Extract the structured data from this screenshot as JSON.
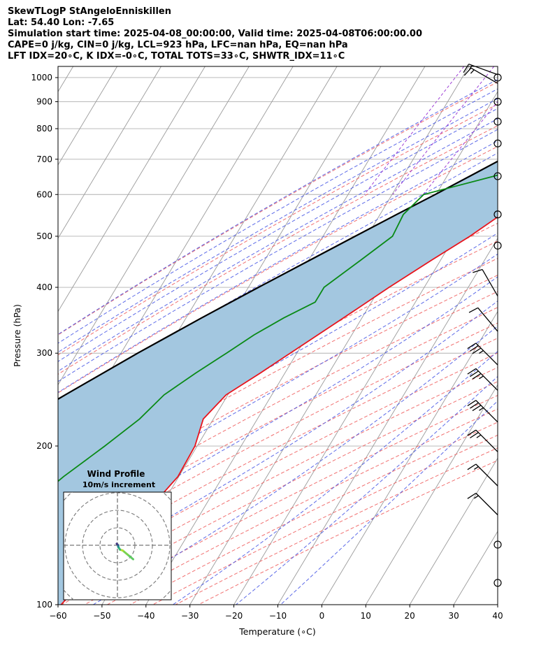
{
  "header": {
    "title": "SkewTLogP StAngeloEnniskillen",
    "location": "Lat: 54.40   Lon: -7.65",
    "times": "Simulation start time: 2025-04-08_00:00:00, Valid time: 2025-04-08T06:00:00.00",
    "indices1": "CAPE=0 j/kg, CIN=0 j/kg, LCL=923 hPa, LFC=nan hPa, EQ=nan hPa",
    "indices2": "LFT IDX=20∘C, K IDX=-0∘C, TOTAL TOTS=33∘C, SHWTR_IDX=11∘C"
  },
  "colors": {
    "temperature": "#e8141c",
    "dewpoint": "#0a8a16",
    "parcel": "#000000",
    "fill": "#a3c7e0",
    "dry_adiabat": "#f06060",
    "moist_adiabat": "#4a5ae6",
    "mixing_ratio": "#9e3fd6",
    "isotherm": "#9a9a9a",
    "grid": "#b0b0b0"
  },
  "chart_data": {
    "type": "line",
    "chart_kind": "skew-T log-P",
    "xlabel": "Temperature (∘C)",
    "ylabel": "Pressure (hPa)",
    "xlim": [
      -60,
      40
    ],
    "ylim": [
      1050,
      100
    ],
    "y_scale": "log",
    "x_ticks": [
      "−60",
      "−50",
      "−40",
      "−30",
      "−20",
      "−10",
      "0",
      "10",
      "20",
      "30",
      "40"
    ],
    "x_tick_values": [
      -60,
      -50,
      -40,
      -30,
      -20,
      -10,
      0,
      10,
      20,
      30,
      40
    ],
    "y_ticks": [
      "100",
      "200",
      "300",
      "400",
      "500",
      "600",
      "700",
      "800",
      "900",
      "1000"
    ],
    "y_tick_values": [
      100,
      200,
      300,
      400,
      500,
      600,
      700,
      800,
      900,
      1000
    ],
    "grid": true,
    "temperature": [
      {
        "p": 1013,
        "t": 4.9
      },
      {
        "p": 1000,
        "t": 8.5
      },
      {
        "p": 975,
        "t": 10.8
      },
      {
        "p": 950,
        "t": 11.4
      },
      {
        "p": 900,
        "t": 10.9
      },
      {
        "p": 850,
        "t": 9.8
      },
      {
        "p": 800,
        "t": 7.3
      },
      {
        "p": 750,
        "t": 3.8
      },
      {
        "p": 700,
        "t": 0.2
      },
      {
        "p": 650,
        "t": -3.5
      },
      {
        "p": 600,
        "t": -7.6
      },
      {
        "p": 550,
        "t": -12.4
      },
      {
        "p": 500,
        "t": -16.6
      },
      {
        "p": 450,
        "t": -22.1
      },
      {
        "p": 400,
        "t": -28.0
      },
      {
        "p": 350,
        "t": -34.2
      },
      {
        "p": 300,
        "t": -41.5
      },
      {
        "p": 275,
        "t": -45.6
      },
      {
        "p": 250,
        "t": -50.4
      },
      {
        "p": 225,
        "t": -52.3
      },
      {
        "p": 200,
        "t": -50.5
      },
      {
        "p": 175,
        "t": -50.2
      },
      {
        "p": 150,
        "t": -52.5
      },
      {
        "p": 125,
        "t": -55.5
      },
      {
        "p": 100,
        "t": -59.3
      }
    ],
    "dewpoint": [
      {
        "p": 1010,
        "t": -0.3
      },
      {
        "p": 990,
        "t": -2.5
      },
      {
        "p": 970,
        "t": -1.4
      },
      {
        "p": 950,
        "t": -0.3
      },
      {
        "p": 920,
        "t": -1.8
      },
      {
        "p": 880,
        "t": -7.0
      },
      {
        "p": 850,
        "t": -13.8
      },
      {
        "p": 800,
        "t": -14.5
      },
      {
        "p": 760,
        "t": -9.8
      },
      {
        "p": 700,
        "t": -8.7
      },
      {
        "p": 680,
        "t": -13.2
      },
      {
        "p": 650,
        "t": -19.3
      },
      {
        "p": 600,
        "t": -32.8
      },
      {
        "p": 550,
        "t": -34.7
      },
      {
        "p": 500,
        "t": -34.2
      },
      {
        "p": 450,
        "t": -38.2
      },
      {
        "p": 400,
        "t": -42.8
      },
      {
        "p": 375,
        "t": -42.8
      },
      {
        "p": 350,
        "t": -47.8
      },
      {
        "p": 325,
        "t": -52.2
      },
      {
        "p": 300,
        "t": -56.0
      },
      {
        "p": 275,
        "t": -60.3
      },
      {
        "p": 250,
        "t": -64.5
      },
      {
        "p": 225,
        "t": -66.8
      },
      {
        "p": 200,
        "t": -71.0
      },
      {
        "p": 175,
        "t": -76.2
      },
      {
        "p": 150,
        "t": -81.0
      },
      {
        "p": 125,
        "t": -82.3
      },
      {
        "p": 100,
        "t": -82.5
      }
    ],
    "parcel": [
      {
        "p": 1013,
        "t": 4.9
      },
      {
        "p": 1000,
        "t": 3.8
      },
      {
        "p": 950,
        "t": -0.5
      },
      {
        "p": 923,
        "t": -2.9
      },
      {
        "p": 900,
        "t": -4.4
      },
      {
        "p": 850,
        "t": -7.8
      },
      {
        "p": 800,
        "t": -11.5
      },
      {
        "p": 750,
        "t": -15.5
      },
      {
        "p": 700,
        "t": -19.9
      },
      {
        "p": 650,
        "t": -24.8
      },
      {
        "p": 600,
        "t": -30.2
      },
      {
        "p": 550,
        "t": -36.2
      },
      {
        "p": 500,
        "t": -42.7
      },
      {
        "p": 450,
        "t": -49.8
      },
      {
        "p": 400,
        "t": -57.7
      },
      {
        "p": 350,
        "t": -66.5
      },
      {
        "p": 300,
        "t": -76.2
      },
      {
        "p": 250,
        "t": -87.0
      },
      {
        "p": 200,
        "t": -99.6
      },
      {
        "p": 150,
        "t": -115.0
      },
      {
        "p": 100,
        "t": -135.0
      }
    ],
    "wind_barbs": [
      {
        "p": 1013,
        "speed_kt": 15,
        "dir": 290
      },
      {
        "p": 1000,
        "speed_kt": 0,
        "dir": 0
      },
      {
        "p": 975,
        "speed_kt": 15,
        "dir": 300
      },
      {
        "p": 900,
        "speed_kt": 0,
        "dir": 0
      },
      {
        "p": 825,
        "speed_kt": 0,
        "dir": 0
      },
      {
        "p": 750,
        "speed_kt": 0,
        "dir": 0
      },
      {
        "p": 650,
        "speed_kt": 0,
        "dir": 0
      },
      {
        "p": 550,
        "speed_kt": 0,
        "dir": 0
      },
      {
        "p": 480,
        "speed_kt": 0,
        "dir": 0
      },
      {
        "p": 385,
        "speed_kt": 10,
        "dir": 330
      },
      {
        "p": 330,
        "speed_kt": 10,
        "dir": 320
      },
      {
        "p": 285,
        "speed_kt": 35,
        "dir": 315
      },
      {
        "p": 255,
        "speed_kt": 35,
        "dir": 315
      },
      {
        "p": 222,
        "speed_kt": 35,
        "dir": 315
      },
      {
        "p": 195,
        "speed_kt": 25,
        "dir": 315
      },
      {
        "p": 168,
        "speed_kt": 15,
        "dir": 315
      },
      {
        "p": 148,
        "speed_kt": 15,
        "dir": 315
      },
      {
        "p": 130,
        "speed_kt": 0,
        "dir": 0
      },
      {
        "p": 110,
        "speed_kt": 0,
        "dir": 0
      }
    ],
    "hodograph": {
      "title": "Wind Profile",
      "subtitle": "10m/s increment",
      "ring_step_ms": 10,
      "rings": 4,
      "points": [
        {
          "u": 9.0,
          "v": -8.0,
          "color": "#5ec962"
        },
        {
          "u": 6.0,
          "v": -5.5,
          "color": "#7ad151"
        },
        {
          "u": 3.0,
          "v": -3.0,
          "color": "#b5de2b"
        },
        {
          "u": 1.5,
          "v": -2.5,
          "color": "#35b779"
        },
        {
          "u": 0.5,
          "v": -1.0,
          "color": "#21918c"
        },
        {
          "u": 0.5,
          "v": 0.0,
          "color": "#31688e"
        },
        {
          "u": -0.2,
          "v": 0.6,
          "color": "#443983"
        },
        {
          "u": -0.4,
          "v": 0.9,
          "color": "#440154"
        }
      ]
    }
  }
}
